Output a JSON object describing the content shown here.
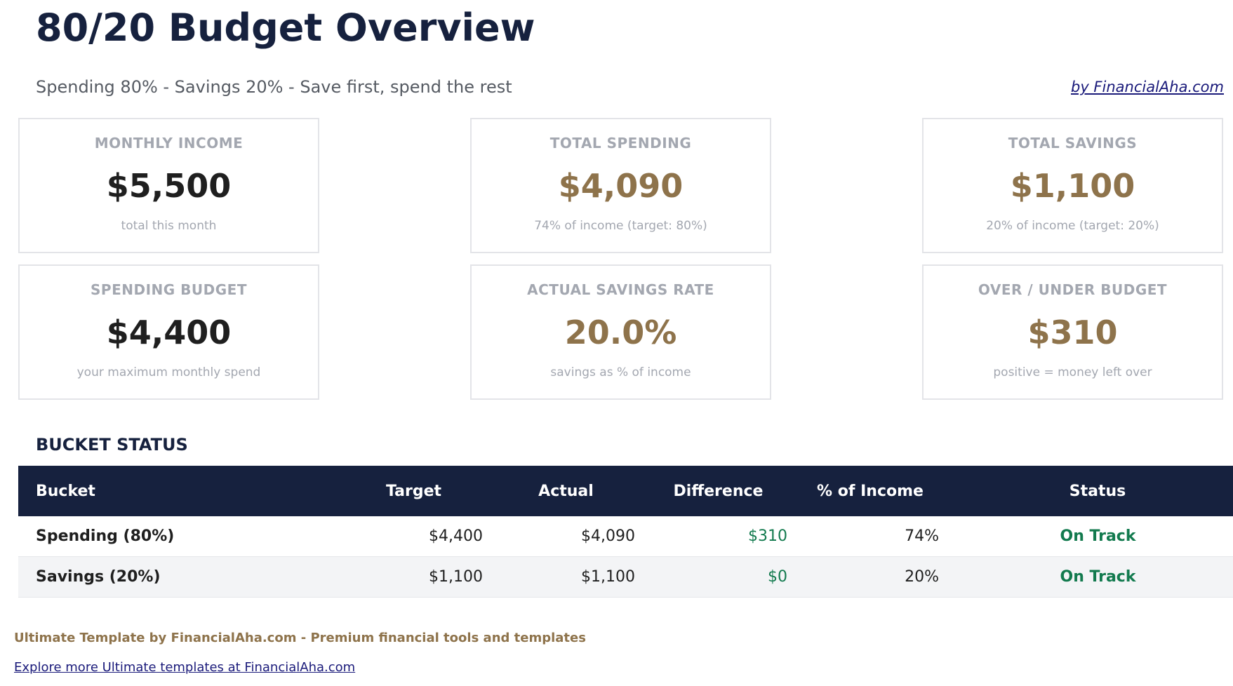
{
  "header": {
    "title": "80/20 Budget Overview",
    "subtitle": "Spending 80% - Savings 20% - Save first, spend the rest",
    "credit": "by FinancialAha.com"
  },
  "cards": [
    {
      "label": "MONTHLY INCOME",
      "value": "$5,500",
      "note": "total this month"
    },
    {
      "label": "TOTAL SPENDING",
      "value": "$4,090",
      "note": "74% of income (target: 80%)"
    },
    {
      "label": "TOTAL SAVINGS",
      "value": "$1,100",
      "note": "20% of income (target: 20%)"
    },
    {
      "label": "SPENDING BUDGET",
      "value": "$4,400",
      "note": "your maximum monthly spend"
    },
    {
      "label": "ACTUAL SAVINGS RATE",
      "value": "20.0%",
      "note": "savings as % of income"
    },
    {
      "label": "OVER / UNDER BUDGET",
      "value": "$310",
      "note": "positive = money left over"
    }
  ],
  "table": {
    "title": "BUCKET STATUS",
    "columns": [
      "Bucket",
      "Target",
      "Actual",
      "Difference",
      "% of Income",
      "Status"
    ],
    "rows": [
      [
        "Spending (80%)",
        "$4,400",
        "$4,090",
        "$310",
        "74%",
        "On Track"
      ],
      [
        "Savings (20%)",
        "$1,100",
        "$1,100",
        "$0",
        "20%",
        "On Track"
      ]
    ]
  },
  "footer": {
    "text": "Ultimate Template by FinancialAha.com - Premium financial tools and templates",
    "link": "Explore more Ultimate templates at FinancialAha.com"
  }
}
